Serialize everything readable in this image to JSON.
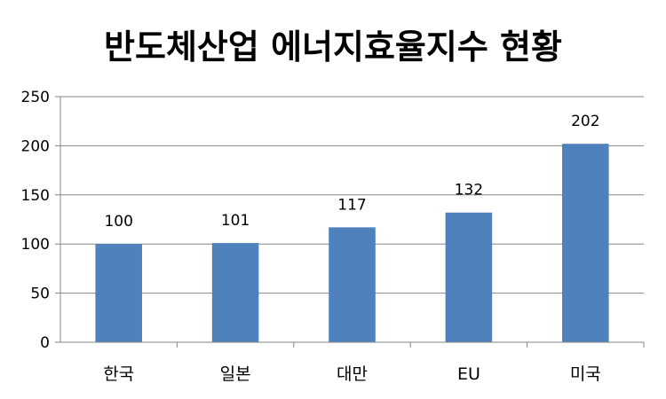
{
  "chart_data": {
    "type": "bar",
    "title": "반도체산업 에너지효율지수 현황",
    "xlabel": "",
    "ylabel": "",
    "categories": [
      "한국",
      "일본",
      "대만",
      "EU",
      "미국"
    ],
    "values": [
      100,
      101,
      117,
      132,
      202
    ],
    "data_labels": [
      "100",
      "101",
      "117",
      "132",
      "202"
    ],
    "ylim": [
      0,
      250
    ],
    "yticks": [
      0,
      50,
      100,
      150,
      200,
      250
    ],
    "ytick_labels": [
      "0",
      "50",
      "100",
      "150",
      "200",
      "250"
    ],
    "grid": true,
    "legend": "none",
    "bar_color": "#4f81bd",
    "grid_color": "#868686"
  }
}
